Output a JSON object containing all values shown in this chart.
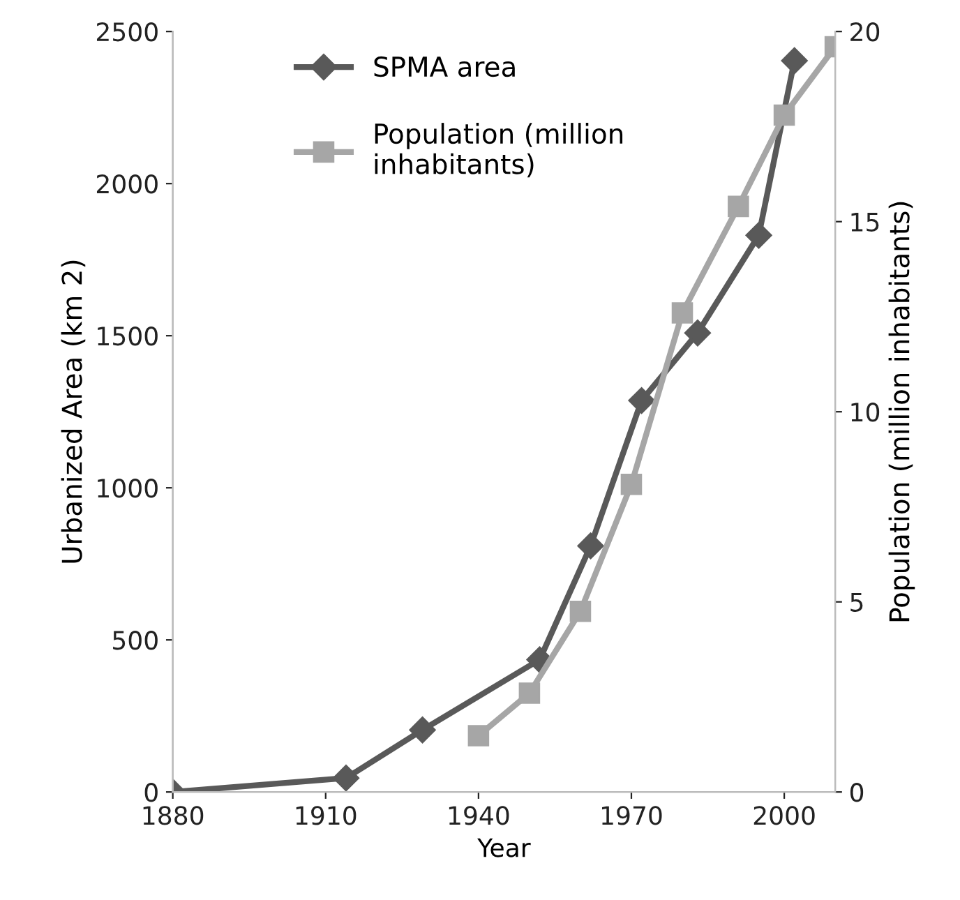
{
  "chart_data": {
    "type": "line",
    "xlabel": "Year",
    "ylabel": "Urbanized Area (km 2)",
    "y2label": "Population (million inhabitants)",
    "xlim": [
      1880,
      2010
    ],
    "xticks": [
      1880,
      1910,
      1940,
      1970,
      2000
    ],
    "ylim": [
      0,
      2500
    ],
    "yticks": [
      0,
      500,
      1000,
      1500,
      2000,
      2500
    ],
    "y2lim": [
      0,
      20
    ],
    "y2ticks": [
      0,
      5,
      10,
      15,
      20
    ],
    "grid": false,
    "legend": "top left",
    "line_style": "solid",
    "series": [
      {
        "name": "SPMA area",
        "color": "#595959",
        "marker": "diamond",
        "x": [
          1880,
          1914,
          1929,
          1952,
          1962,
          1972,
          1983,
          1995,
          2002
        ],
        "values": [
          0,
          46,
          204,
          435,
          809,
          1287,
          1509,
          1830,
          2404
        ]
      },
      {
        "name": "Population (million\ninhabitants)",
        "color": "#a6a6a6",
        "marker": "square",
        "axis": "y2",
        "x": [
          1940,
          1950,
          1960,
          1970,
          1980,
          1991,
          2000,
          2010
        ],
        "values": [
          1.48,
          2.6,
          4.75,
          8.09,
          12.6,
          15.4,
          17.8,
          19.6
        ]
      }
    ]
  }
}
